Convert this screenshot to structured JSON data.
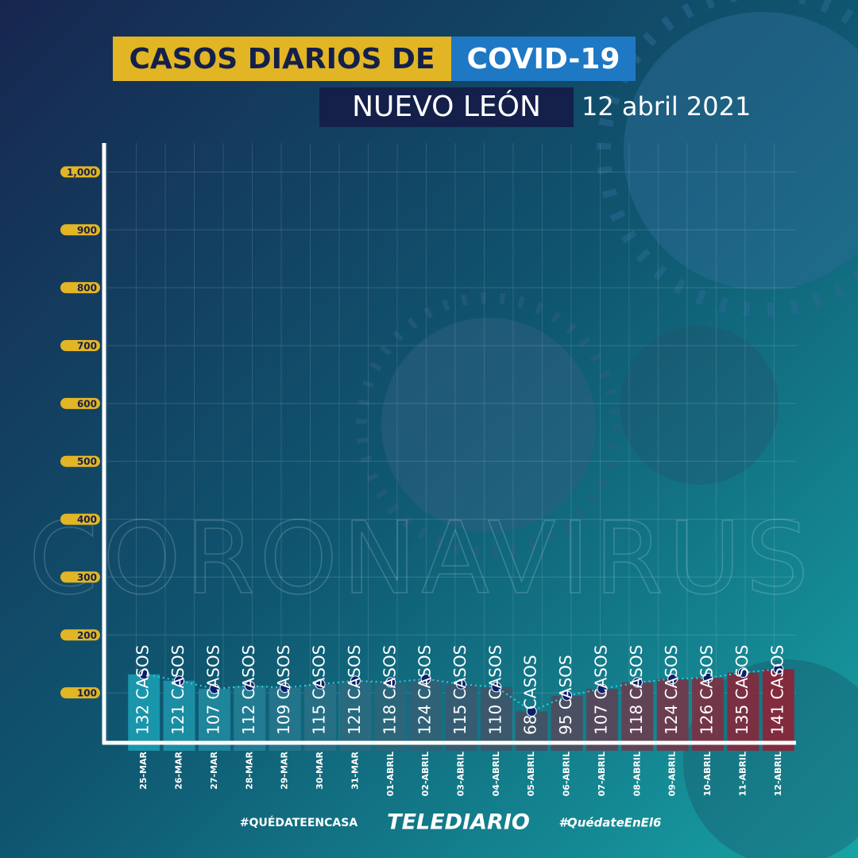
{
  "chart_data": {
    "type": "bar",
    "title": "CASOS DIARIOS DE",
    "title_highlight": "COVID-19",
    "subtitle": "NUEVO LEÓN",
    "date": "12 abril 2021",
    "watermark": "CORONAVIRUS",
    "categories": [
      "25-MAR",
      "26-MAR",
      "27-MAR",
      "28-MAR",
      "29-MAR",
      "30-MAR",
      "31-MAR",
      "01-ABRIL",
      "02-ABRIL",
      "03-ABRIL",
      "04-ABRIL",
      "05-ABRIL",
      "06-ABRIL",
      "07-ABRIL",
      "08-ABRIL",
      "09-ABRIL",
      "10-ABRIL",
      "11-ABRIL",
      "12-ABRIL"
    ],
    "values": [
      132,
      121,
      107,
      112,
      109,
      115,
      121,
      118,
      124,
      115,
      110,
      68,
      95,
      107,
      118,
      124,
      126,
      135,
      141
    ],
    "value_labels": [
      "132 CASOS",
      "121 CASOS",
      "107 CASOS",
      "112 CASOS",
      "109 CASOS",
      "115 CASOS",
      "121 CASOS",
      "118 CASOS",
      "124 CASOS",
      "115 CASOS",
      "110 CASOS",
      "68 CASOS",
      "95 CASOS",
      "107 CASOS",
      "118 CASOS",
      "124 CASOS",
      "126 CASOS",
      "135 CASOS",
      "141 CASOS"
    ],
    "colors": [
      "#1b9cb3",
      "#1d94aa",
      "#2089a0",
      "#237f96",
      "#26778d",
      "#297086",
      "#2c6a80",
      "#2f657a",
      "#336075",
      "#3a5a70",
      "#405469",
      "#474f62",
      "#514a5c",
      "#5c4456",
      "#683d4f",
      "#733648",
      "#7d3042",
      "#86283b",
      "#8f2236"
    ],
    "line_color": "#2ad2e0",
    "ylim": [
      0,
      1050
    ],
    "yticks": [
      100,
      200,
      300,
      400,
      500,
      600,
      700,
      800,
      900,
      {
        "value": 1000,
        "label": "1,000"
      }
    ],
    "grid": true
  },
  "footer": {
    "left": "#QUÉDATEENCASA",
    "brand": "TELEDIARIO",
    "right": "#QuédateEnEl6"
  }
}
